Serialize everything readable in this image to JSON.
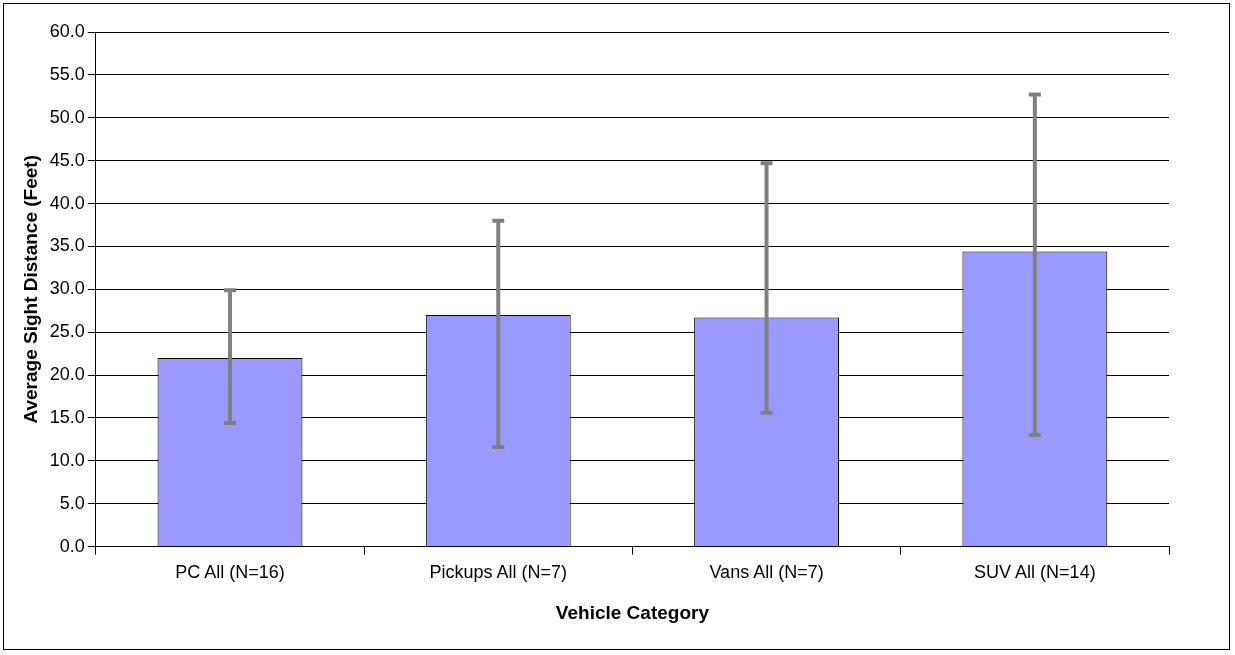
{
  "chart_data": {
    "type": "bar",
    "xlabel": "Vehicle Category",
    "ylabel": "Average Sight Distance (Feet)",
    "categories": [
      "PC All (N=16)",
      "Pickups All (N=7)",
      "Vans All (N=7)",
      "SUV All (N=14)"
    ],
    "values": [
      22.0,
      27.0,
      26.7,
      34.4
    ],
    "color": "#9999ff",
    "errors": [
      [
        14.4,
        29.9
      ],
      [
        11.6,
        38.0
      ],
      [
        15.6,
        44.7
      ],
      [
        13.0,
        52.7
      ]
    ],
    "ylim": [
      0,
      60
    ],
    "yticks": [
      {
        "value": 0,
        "label": "0.0"
      },
      {
        "value": 5,
        "label": "5.0"
      },
      {
        "value": 10,
        "label": "10.0"
      },
      {
        "value": 15,
        "label": "15.0"
      },
      {
        "value": 20,
        "label": "20.0"
      },
      {
        "value": 25,
        "label": "25.0"
      },
      {
        "value": 30,
        "label": "30.0"
      },
      {
        "value": 35,
        "label": "35.0"
      },
      {
        "value": 40,
        "label": "40.0"
      },
      {
        "value": 45,
        "label": "45.0"
      },
      {
        "value": 50,
        "label": "50.0"
      },
      {
        "value": 55,
        "label": "55.0"
      },
      {
        "value": 60,
        "label": "60.0"
      }
    ],
    "grid": "y",
    "legend": false
  }
}
